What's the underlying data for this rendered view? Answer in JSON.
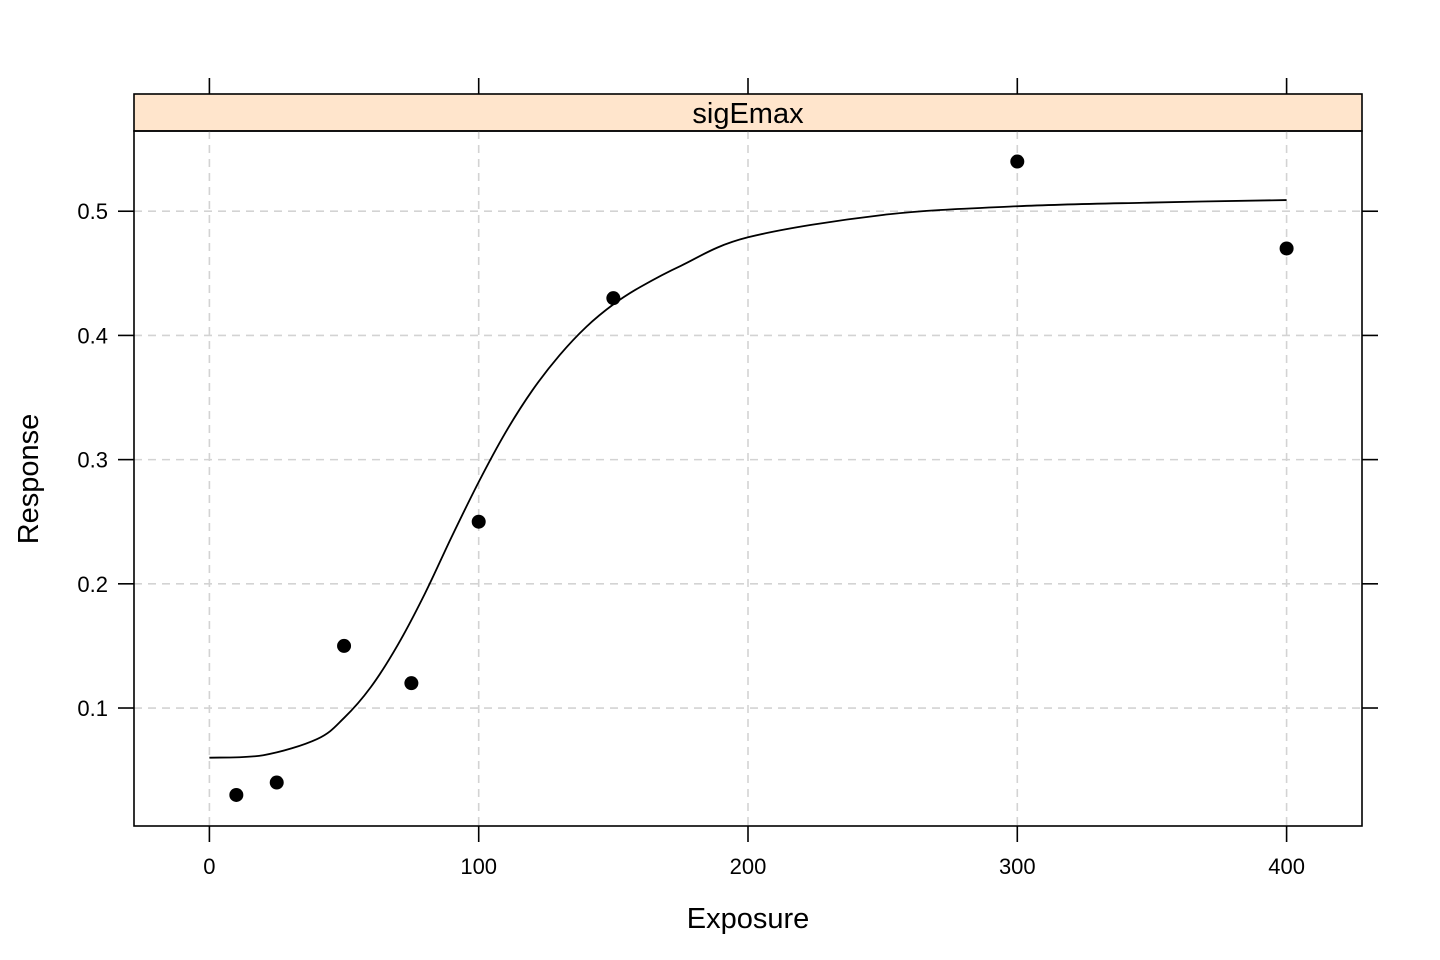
{
  "chart_data": {
    "type": "scatter",
    "panel_title": "sigEmax",
    "title": "",
    "xlabel": "Exposure",
    "ylabel": "Response",
    "xlim": [
      -28,
      428
    ],
    "ylim": [
      0.005,
      0.5646
    ],
    "x_ticks": [
      0,
      100,
      200,
      300,
      400
    ],
    "x_tick_labels": [
      "0",
      "100",
      "200",
      "300",
      "400"
    ],
    "y_ticks": [
      0.1,
      0.2,
      0.3,
      0.4,
      0.5
    ],
    "y_tick_labels": [
      "0.1",
      "0.2",
      "0.3",
      "0.4",
      "0.5"
    ],
    "grid": true,
    "strip_color": "#ffe5cc",
    "series": [
      {
        "type": "scatter",
        "x": [
          10,
          25,
          50,
          75,
          100,
          150,
          300,
          400
        ],
        "y": [
          0.03,
          0.04,
          0.15,
          0.12,
          0.25,
          0.43,
          0.54,
          0.47
        ]
      },
      {
        "type": "line",
        "x": [
          0,
          20,
          40,
          50,
          60,
          70,
          80,
          90,
          100,
          110,
          120,
          130,
          140,
          150,
          160,
          175,
          200,
          250,
          300,
          350,
          400
        ],
        "y": [
          0.06,
          0.062,
          0.075,
          0.092,
          0.117,
          0.151,
          0.192,
          0.238,
          0.282,
          0.322,
          0.356,
          0.384,
          0.407,
          0.425,
          0.439,
          0.456,
          0.479,
          0.497,
          0.504,
          0.507,
          0.509
        ]
      }
    ]
  }
}
